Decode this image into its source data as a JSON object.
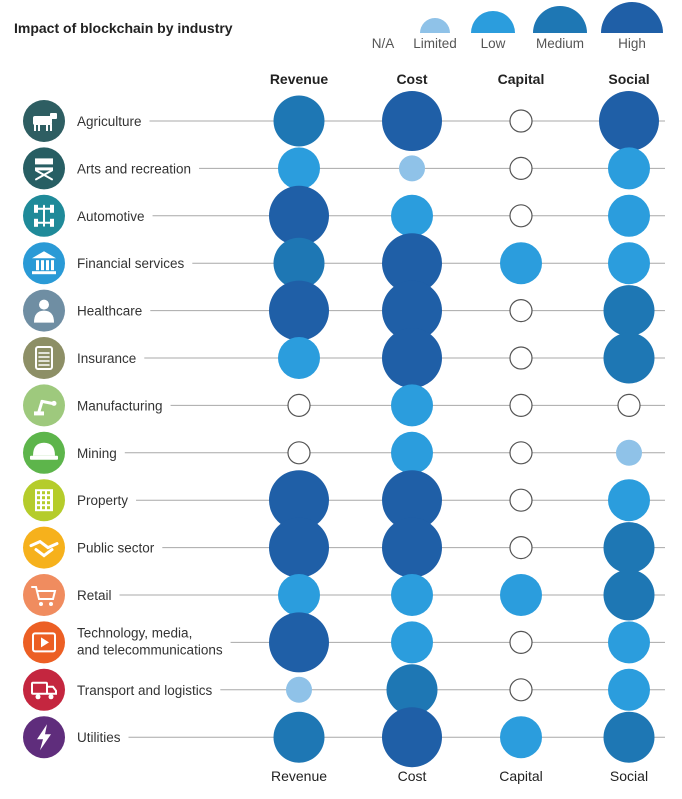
{
  "chart_data": {
    "type": "table",
    "title": "Impact of blockchain by industry",
    "levels": [
      "N/A",
      "Limited",
      "Low",
      "Medium",
      "High"
    ],
    "level_colors": {
      "N/A": "#ffffff",
      "Limited": "#8fc2e8",
      "Low": "#2b9ddd",
      "Medium": "#1e77b4",
      "High": "#1f5fa7"
    },
    "columns": [
      "Revenue",
      "Cost",
      "Capital",
      "Social"
    ],
    "rows": [
      {
        "industry": "Agriculture",
        "icon": "cow-icon",
        "icon_color": "#2e5e62",
        "values": [
          "Medium",
          "High",
          "N/A",
          "High"
        ]
      },
      {
        "industry": "Arts and recreation",
        "icon": "directors-chair-icon",
        "icon_color": "#275e63",
        "values": [
          "Low",
          "Limited",
          "N/A",
          "Low"
        ]
      },
      {
        "industry": "Automotive",
        "icon": "chassis-icon",
        "icon_color": "#1f8a99",
        "values": [
          "High",
          "Low",
          "N/A",
          "Low"
        ]
      },
      {
        "industry": "Financial services",
        "icon": "bank-icon",
        "icon_color": "#2a9ad6",
        "values": [
          "Medium",
          "High",
          "Low",
          "Low"
        ]
      },
      {
        "industry": "Healthcare",
        "icon": "doctor-icon",
        "icon_color": "#6f8ea3",
        "values": [
          "High",
          "High",
          "N/A",
          "Medium"
        ]
      },
      {
        "industry": "Insurance",
        "icon": "document-icon",
        "icon_color": "#8d8f66",
        "values": [
          "Low",
          "High",
          "N/A",
          "Medium"
        ]
      },
      {
        "industry": "Manufacturing",
        "icon": "robot-arm-icon",
        "icon_color": "#9ec97d",
        "values": [
          "N/A",
          "Low",
          "N/A",
          "N/A"
        ]
      },
      {
        "industry": "Mining",
        "icon": "hard-hat-icon",
        "icon_color": "#5db54b",
        "values": [
          "N/A",
          "Low",
          "N/A",
          "Limited"
        ]
      },
      {
        "industry": "Property",
        "icon": "building-icon",
        "icon_color": "#b5cc2b",
        "values": [
          "High",
          "High",
          "N/A",
          "Low"
        ]
      },
      {
        "industry": "Public sector",
        "icon": "handshake-icon",
        "icon_color": "#f6b11c",
        "values": [
          "High",
          "High",
          "N/A",
          "Medium"
        ]
      },
      {
        "industry": "Retail",
        "icon": "shopping-cart-icon",
        "icon_color": "#f08c5f",
        "values": [
          "Low",
          "Low",
          "Low",
          "Medium"
        ]
      },
      {
        "industry": "Technology, media, and telecommunications",
        "label_lines": [
          "Technology, media,",
          "and telecommunications"
        ],
        "icon": "play-film-icon",
        "icon_color": "#ec5f24",
        "values": [
          "High",
          "Low",
          "N/A",
          "Low"
        ]
      },
      {
        "industry": "Transport and logistics",
        "icon": "truck-icon",
        "icon_color": "#c4263f",
        "values": [
          "Limited",
          "Medium",
          "N/A",
          "Low"
        ]
      },
      {
        "industry": "Utilities",
        "icon": "lightning-icon",
        "icon_color": "#5f2d7c",
        "values": [
          "Medium",
          "High",
          "Low",
          "Medium"
        ]
      }
    ]
  }
}
